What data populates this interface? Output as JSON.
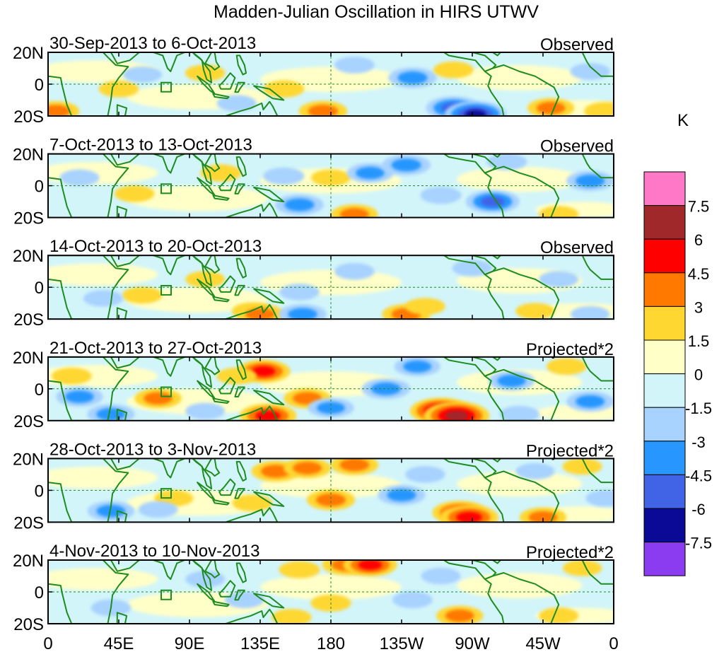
{
  "chart_data": {
    "type": "heatmap",
    "title": "Madden-Julian Oscillation in HIRS UTWV",
    "unit_label": "K",
    "y_tick_labels": [
      "20N",
      "0",
      "20S"
    ],
    "x_tick_labels": [
      "0",
      "45E",
      "90E",
      "135E",
      "180",
      "135W",
      "90W",
      "45W",
      "0"
    ],
    "x_range_deg_east": [
      0,
      360
    ],
    "lat_range_deg": [
      -20,
      20
    ],
    "reference_lines": [
      "equator",
      "180"
    ],
    "colorbar": {
      "levels": [
        "7.5",
        "6",
        "4.5",
        "3",
        "1.5",
        "0",
        "-1.5",
        "-3",
        "-4.5",
        "-6",
        "-7.5"
      ],
      "colors": [
        "#ff78c8",
        "#a0282a",
        "#ff0000",
        "#ff7800",
        "#ffd730",
        "#ffffc8",
        "#d2f5fa",
        "#a8d2ff",
        "#2896ff",
        "#4164e6",
        "#0a0a96",
        "#8c3cf0"
      ]
    },
    "panels": [
      {
        "date_range": "30-Sep-2013 to 6-Oct-2013",
        "label": "Observed",
        "anomalies": [
          {
            "lon": 5,
            "lat": -17,
            "value": 3.2
          },
          {
            "lon": 45,
            "lat": -3,
            "value": 1.8
          },
          {
            "lon": 100,
            "lat": 7,
            "value": 1.8
          },
          {
            "lon": 150,
            "lat": -3,
            "value": 2.0
          },
          {
            "lon": 175,
            "lat": -17,
            "value": 3.5
          },
          {
            "lon": 195,
            "lat": 12,
            "value": -1.8
          },
          {
            "lon": 232,
            "lat": 4,
            "value": -3.5
          },
          {
            "lon": 258,
            "lat": -15,
            "value": -4.8
          },
          {
            "lon": 272,
            "lat": -19,
            "value": -6.2
          },
          {
            "lon": 258,
            "lat": 9,
            "value": 1.8
          },
          {
            "lon": 320,
            "lat": -15,
            "value": 3.2
          },
          {
            "lon": 355,
            "lat": -17,
            "value": 2.5
          },
          {
            "lon": 60,
            "lat": 6,
            "value": -1.6
          },
          {
            "lon": 120,
            "lat": -12,
            "value": -1.7
          },
          {
            "lon": 345,
            "lat": 8,
            "value": -1.8
          }
        ]
      },
      {
        "date_range": "7-Oct-2013 to 13-Oct-2013",
        "label": "Observed",
        "anomalies": [
          {
            "lon": 110,
            "lat": 8,
            "value": 2.0
          },
          {
            "lon": 55,
            "lat": -5,
            "value": 1.8
          },
          {
            "lon": 20,
            "lat": 5,
            "value": -1.7
          },
          {
            "lon": 150,
            "lat": 6,
            "value": -2.0
          },
          {
            "lon": 160,
            "lat": -12,
            "value": -3.5
          },
          {
            "lon": 195,
            "lat": -18,
            "value": 3.2
          },
          {
            "lon": 180,
            "lat": 5,
            "value": 1.7
          },
          {
            "lon": 205,
            "lat": 8,
            "value": -3.2
          },
          {
            "lon": 228,
            "lat": 13,
            "value": -3.5
          },
          {
            "lon": 250,
            "lat": -6,
            "value": -2.0
          },
          {
            "lon": 283,
            "lat": -10,
            "value": -4.6
          },
          {
            "lon": 292,
            "lat": 15,
            "value": -1.8
          },
          {
            "lon": 345,
            "lat": 3,
            "value": -3.3
          },
          {
            "lon": 325,
            "lat": -18,
            "value": 1.7
          }
        ]
      },
      {
        "date_range": "14-Oct-2013 to 20-Oct-2013",
        "label": "Observed",
        "anomalies": [
          {
            "lon": 100,
            "lat": 5,
            "value": 1.7
          },
          {
            "lon": 60,
            "lat": -5,
            "value": 1.8
          },
          {
            "lon": 130,
            "lat": -15,
            "value": 2.0
          },
          {
            "lon": 135,
            "lat": -17,
            "value": 3.5
          },
          {
            "lon": 35,
            "lat": -7,
            "value": -1.7
          },
          {
            "lon": 160,
            "lat": -3,
            "value": -1.8
          },
          {
            "lon": 162,
            "lat": -17,
            "value": -3.4
          },
          {
            "lon": 195,
            "lat": 10,
            "value": -1.8
          },
          {
            "lon": 228,
            "lat": -17,
            "value": 3.5
          },
          {
            "lon": 240,
            "lat": -12,
            "value": 1.8
          },
          {
            "lon": 270,
            "lat": 12,
            "value": -1.8
          },
          {
            "lon": 325,
            "lat": 5,
            "value": -1.7
          },
          {
            "lon": 345,
            "lat": -17,
            "value": -1.6
          },
          {
            "lon": 310,
            "lat": -15,
            "value": 1.6
          }
        ]
      },
      {
        "date_range": "21-Oct-2013 to 27-Oct-2013",
        "label": "Projected*2",
        "anomalies": [
          {
            "lon": 137,
            "lat": 11,
            "value": 4.6
          },
          {
            "lon": 140,
            "lat": -17,
            "value": 5.2
          },
          {
            "lon": 120,
            "lat": 8,
            "value": 1.8
          },
          {
            "lon": 165,
            "lat": -6,
            "value": 3.3
          },
          {
            "lon": 70,
            "lat": -6,
            "value": 3.2
          },
          {
            "lon": 15,
            "lat": 8,
            "value": 1.8
          },
          {
            "lon": 20,
            "lat": -5,
            "value": -3.2
          },
          {
            "lon": 40,
            "lat": -16,
            "value": -3.3
          },
          {
            "lon": 180,
            "lat": -12,
            "value": -3.0
          },
          {
            "lon": 215,
            "lat": 0,
            "value": -3.5
          },
          {
            "lon": 235,
            "lat": 14,
            "value": -3.0
          },
          {
            "lon": 250,
            "lat": -14,
            "value": 6.2
          },
          {
            "lon": 260,
            "lat": -17,
            "value": 7.0
          },
          {
            "lon": 295,
            "lat": 5,
            "value": -3.1
          },
          {
            "lon": 330,
            "lat": 14,
            "value": 1.8
          },
          {
            "lon": 345,
            "lat": -8,
            "value": -3.3
          },
          {
            "lon": 300,
            "lat": -16,
            "value": -1.8
          },
          {
            "lon": 100,
            "lat": -14,
            "value": -1.7
          }
        ]
      },
      {
        "date_range": "28-Oct-2013 to 3-Nov-2013",
        "label": "Projected*2",
        "anomalies": [
          {
            "lon": 145,
            "lat": 12,
            "value": 3.6
          },
          {
            "lon": 165,
            "lat": 14,
            "value": 3.3
          },
          {
            "lon": 195,
            "lat": 16,
            "value": 3.4
          },
          {
            "lon": 130,
            "lat": -8,
            "value": 1.8
          },
          {
            "lon": 180,
            "lat": -6,
            "value": 3.5
          },
          {
            "lon": 80,
            "lat": -5,
            "value": 1.6
          },
          {
            "lon": 40,
            "lat": -13,
            "value": -3.2
          },
          {
            "lon": 70,
            "lat": -12,
            "value": -1.7
          },
          {
            "lon": 225,
            "lat": -3,
            "value": -3.3
          },
          {
            "lon": 240,
            "lat": 10,
            "value": -1.8
          },
          {
            "lon": 262,
            "lat": -14,
            "value": 4.8
          },
          {
            "lon": 268,
            "lat": -17,
            "value": 5.5
          },
          {
            "lon": 315,
            "lat": -17,
            "value": 3.2
          },
          {
            "lon": 310,
            "lat": 12,
            "value": -1.6
          },
          {
            "lon": 340,
            "lat": 15,
            "value": 1.7
          },
          {
            "lon": 355,
            "lat": -5,
            "value": -1.8
          }
        ]
      },
      {
        "date_range": "4-Nov-2013 to 10-Nov-2013",
        "label": "Projected*2",
        "anomalies": [
          {
            "lon": 160,
            "lat": 14,
            "value": 2.0
          },
          {
            "lon": 190,
            "lat": 17,
            "value": 3.6
          },
          {
            "lon": 205,
            "lat": 17,
            "value": 4.6
          },
          {
            "lon": 180,
            "lat": -7,
            "value": 1.9
          },
          {
            "lon": 155,
            "lat": -16,
            "value": 1.8
          },
          {
            "lon": 40,
            "lat": -10,
            "value": -1.8
          },
          {
            "lon": 100,
            "lat": 8,
            "value": -1.7
          },
          {
            "lon": 125,
            "lat": -5,
            "value": -1.7
          },
          {
            "lon": 232,
            "lat": -5,
            "value": -1.8
          },
          {
            "lon": 262,
            "lat": -15,
            "value": 3.2
          },
          {
            "lon": 250,
            "lat": 10,
            "value": -1.7
          },
          {
            "lon": 325,
            "lat": -15,
            "value": 1.7
          },
          {
            "lon": 340,
            "lat": 15,
            "value": 1.6
          }
        ]
      }
    ]
  }
}
